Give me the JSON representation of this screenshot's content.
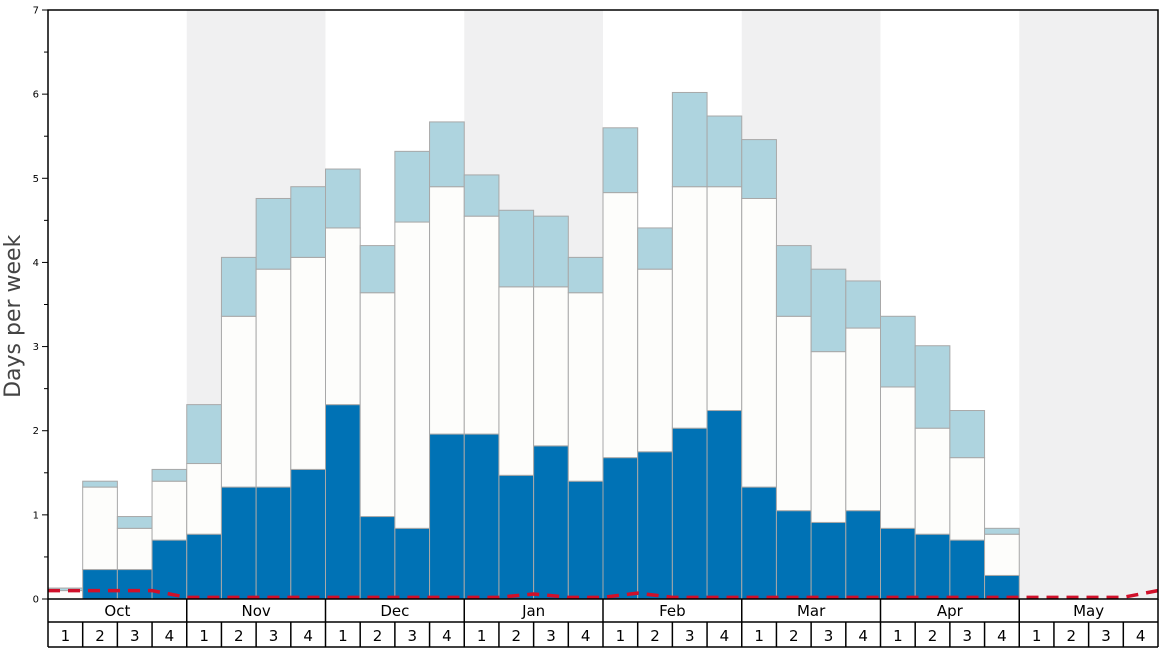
{
  "chart_data": {
    "type": "bar",
    "stacked": true,
    "ylabel": "Days per week",
    "ylim": [
      0,
      7
    ],
    "y_ticks": [
      "0",
      "1",
      "2",
      "3",
      "4",
      "5",
      "6",
      "7"
    ],
    "months": [
      "Oct",
      "Nov",
      "Dec",
      "Jan",
      "Feb",
      "Mar",
      "Apr",
      "May"
    ],
    "week_labels": [
      "1",
      "2",
      "3",
      "4"
    ],
    "grid": false,
    "colors": {
      "series_dark": "#0072b5",
      "series_white": "#fdfdfb",
      "series_light": "#aed4df",
      "line": "#d0102a",
      "shade": "#f0f0f1",
      "bar_edge": "#a8a8a8",
      "axis": "#000000"
    },
    "series": [
      {
        "values": [
          0,
          0.35,
          0.35,
          0.7,
          0.77,
          1.33,
          1.33,
          1.54,
          2.31,
          0.98,
          0.84,
          1.96,
          1.96,
          1.47,
          1.82,
          1.4,
          1.68,
          1.75,
          2.03,
          2.24,
          1.33,
          1.05,
          0.91,
          1.05,
          0.84,
          0.77,
          0.7,
          0.28,
          0,
          0,
          0,
          0
        ]
      },
      {
        "values": [
          0.1,
          0.98,
          0.49,
          0.7,
          0.84,
          2.03,
          2.59,
          2.52,
          2.1,
          2.66,
          3.64,
          2.94,
          2.59,
          2.24,
          1.89,
          2.24,
          3.15,
          2.17,
          2.87,
          2.66,
          3.43,
          2.31,
          2.03,
          2.17,
          1.68,
          1.26,
          0.98,
          0.49,
          0,
          0,
          0,
          0
        ]
      },
      {
        "values": [
          0.03,
          0.07,
          0.14,
          0.14,
          0.7,
          0.7,
          0.84,
          0.84,
          0.7,
          0.56,
          0.84,
          0.77,
          0.49,
          0.91,
          0.84,
          0.42,
          0.77,
          0.49,
          1.12,
          0.84,
          0.7,
          0.84,
          0.98,
          0.56,
          0.84,
          0.98,
          0.56,
          0.07,
          0,
          0,
          0,
          0
        ]
      }
    ],
    "line_series": {
      "style": "dashed",
      "values": [
        0.1,
        0.1,
        0.1,
        0.1,
        0.02,
        0.02,
        0.02,
        0.02,
        0.02,
        0.02,
        0.02,
        0.02,
        0.02,
        0.02,
        0.06,
        0.02,
        0.02,
        0.07,
        0.02,
        0.02,
        0.02,
        0.02,
        0.02,
        0.02,
        0.02,
        0.02,
        0.02,
        0.02,
        0.02,
        0.02,
        0.02,
        0.02,
        0.1
      ]
    }
  }
}
